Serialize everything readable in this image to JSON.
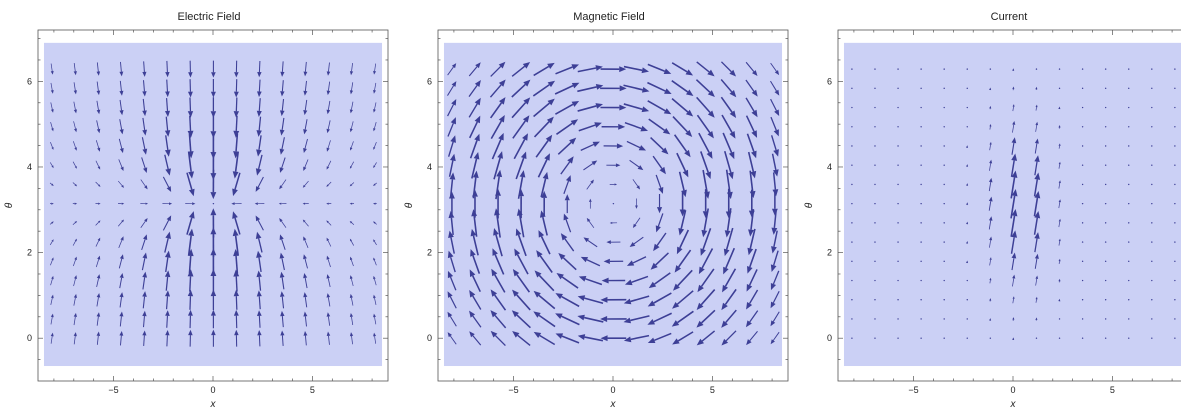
{
  "chart_data": [
    {
      "type": "vector_field",
      "title": "Electric Field",
      "xlabel": "x",
      "ylabel": "θ",
      "xlim": [
        -8.8,
        8.8
      ],
      "ylim": [
        -1.0,
        7.2
      ],
      "xticks": [
        -5,
        0,
        5
      ],
      "yticks": [
        0,
        2,
        4,
        6
      ],
      "region": {
        "x": [
          -8.5,
          8.5
        ],
        "y": [
          -0.65,
          6.9
        ]
      },
      "grid": {
        "x_start": -8.1,
        "x_step": 1.16,
        "nx": 15,
        "y_start": 0.0,
        "y_step": 0.449,
        "ny": 15
      },
      "field": "electric",
      "color": "#3d3f96",
      "background": "#cbd0f5"
    },
    {
      "type": "vector_field",
      "title": "Magnetic Field",
      "xlabel": "x",
      "ylabel": "θ",
      "xlim": [
        -8.8,
        8.8
      ],
      "ylim": [
        -1.0,
        7.2
      ],
      "xticks": [
        -5,
        0,
        5
      ],
      "yticks": [
        0,
        2,
        4,
        6
      ],
      "region": {
        "x": [
          -8.5,
          8.5
        ],
        "y": [
          -0.65,
          6.9
        ]
      },
      "grid": {
        "x_start": -8.1,
        "x_step": 1.16,
        "nx": 15,
        "y_start": 0.0,
        "y_step": 0.449,
        "ny": 15
      },
      "field": "magnetic",
      "color": "#3d3f96",
      "background": "#cbd0f5"
    },
    {
      "type": "vector_field",
      "title": "Current",
      "xlabel": "x",
      "ylabel": "θ",
      "xlim": [
        -8.8,
        8.8
      ],
      "ylim": [
        -1.0,
        7.2
      ],
      "xticks": [
        -5,
        0,
        5
      ],
      "yticks": [
        0,
        2,
        4,
        6
      ],
      "region": {
        "x": [
          -8.5,
          8.5
        ],
        "y": [
          -0.65,
          6.9
        ]
      },
      "grid": {
        "x_start": -8.1,
        "x_step": 1.16,
        "nx": 15,
        "y_start": 0.0,
        "y_step": 0.449,
        "ny": 15
      },
      "field": "current",
      "color": "#3d3f96",
      "background": "#cbd0f5"
    }
  ]
}
